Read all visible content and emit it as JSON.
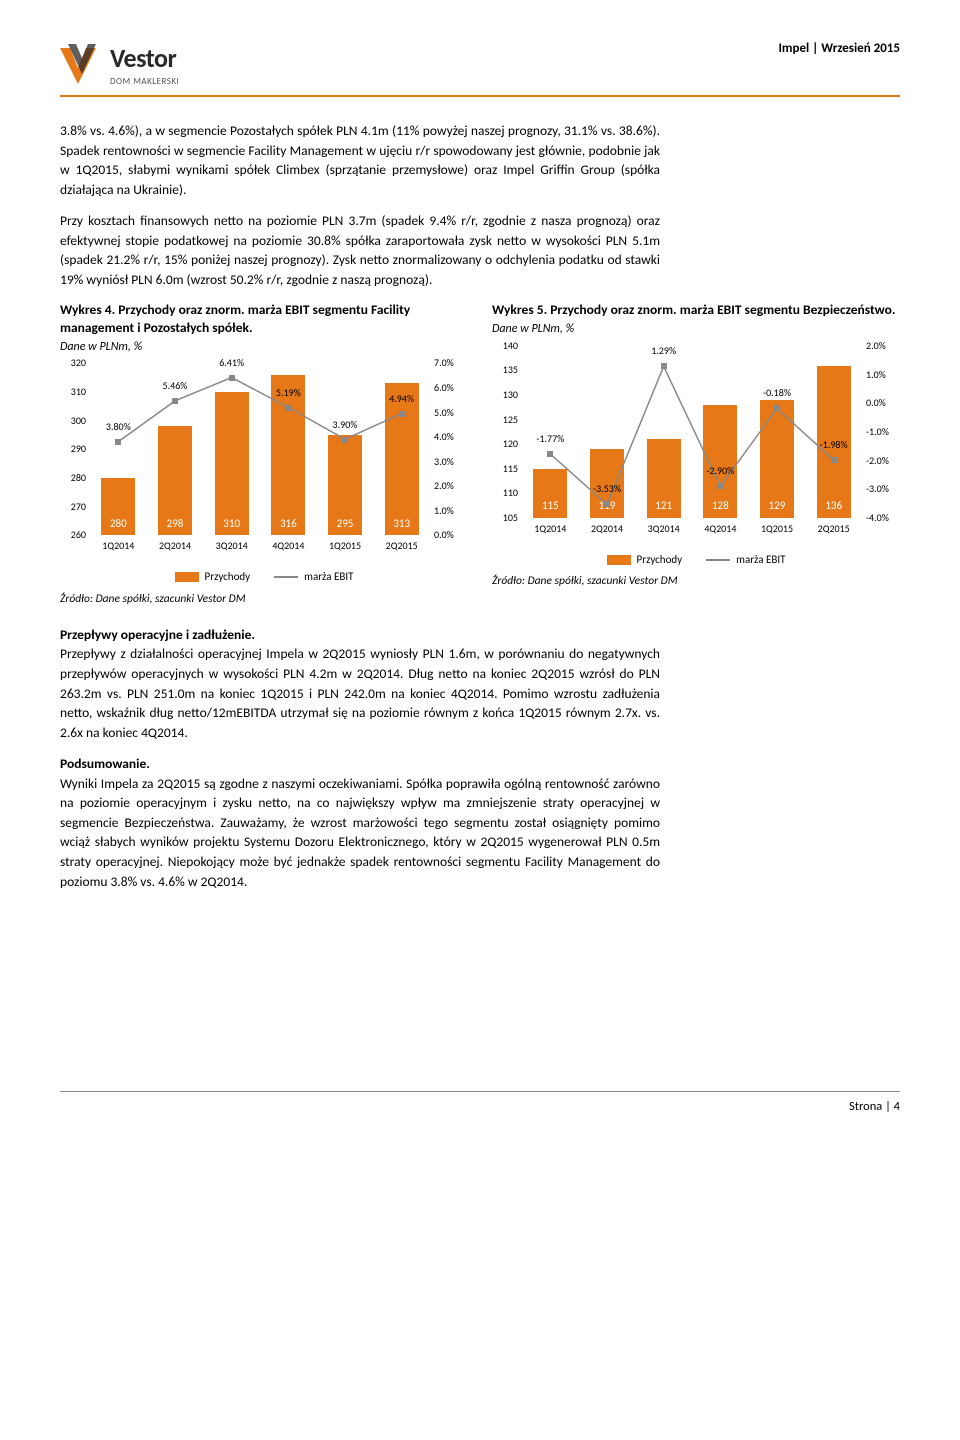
{
  "header": {
    "brand": "Vestor",
    "subbrand": "DOM MAKLERSKI",
    "right": "Impel | Wrzesień 2015",
    "logo_colors": {
      "orange": "#e67817",
      "dark": "#2a2a2a"
    }
  },
  "para1": "3.8% vs. 4.6%), a w segmencie Pozostałych spółek PLN 4.1m (11% powyżej naszej prognozy, 31.1% vs. 38.6%). Spadek rentowności w segmencie Facility Management w ujęciu r/r spowodowany jest głównie, podobnie jak w 1Q2015, słabymi wynikami spółek Climbex (sprzątanie przemysłowe) oraz Impel Griffin Group (spółka działająca na Ukrainie).",
  "para2": "Przy kosztach finansowych netto na poziomie PLN 3.7m (spadek 9.4% r/r, zgodnie z nasza prognozą) oraz efektywnej stopie podatkowej na poziomie 30.8% spółka zaraportowała zysk netto w wysokości PLN 5.1m (spadek 21.2% r/r, 15% poniżej naszej prognozy). Zysk netto znormalizowany o odchylenia podatku od stawki 19% wyniósł PLN 6.0m (wzrost 50.2% r/r, zgodnie z naszą prognozą).",
  "chart4": {
    "title": "Wykres 4. Przychody oraz znorm. marża EBIT segmentu Facility management i Pozostałych spółek.",
    "sub": "Dane w PLNm, %",
    "categories": [
      "1Q2014",
      "2Q2014",
      "3Q2014",
      "4Q2014",
      "1Q2015",
      "2Q2015"
    ],
    "bars": [
      280,
      298,
      310,
      316,
      295,
      313
    ],
    "line": [
      3.8,
      5.46,
      6.41,
      5.19,
      3.9,
      4.94
    ],
    "line_labels": [
      "3.80%",
      "5.46%",
      "6.41%",
      "5.19%",
      "3.90%",
      "4.94%"
    ],
    "y1_min": 260,
    "y1_max": 320,
    "y1_step": 10,
    "y2_min": 0.0,
    "y2_max": 7.0,
    "y2_step": 1.0,
    "bar_color": "#e67817",
    "line_color": "#888888",
    "bg": "#ffffff",
    "legend_bar": "Przychody",
    "legend_line": "marża EBIT",
    "source": "Źródło: Dane spółki, szacunki Vestor DM",
    "label_fontsize": 10
  },
  "chart5": {
    "title": "Wykres 5. Przychody oraz znorm. marża EBIT segmentu Bezpieczeństwo.",
    "sub": "Dane w PLNm, %",
    "categories": [
      "1Q2014",
      "2Q2014",
      "3Q2014",
      "4Q2014",
      "1Q2015",
      "2Q2015"
    ],
    "bars": [
      115,
      119,
      121,
      128,
      129,
      136
    ],
    "line": [
      -1.77,
      -3.53,
      1.29,
      -2.9,
      -0.18,
      -1.98
    ],
    "line_labels": [
      "-1.77%",
      "-3.53%",
      "1.29%",
      "-2.90%",
      "-0.18%",
      "-1.98%"
    ],
    "y1_min": 105,
    "y1_max": 140,
    "y1_step": 5,
    "y2_min": -4.0,
    "y2_max": 2.0,
    "y2_step": 1.0,
    "bar_color": "#e67817",
    "line_color": "#888888",
    "bg": "#ffffff",
    "legend_bar": "Przychody",
    "legend_line": "marża EBIT",
    "source": "Źródło: Dane spółki, szacunki Vestor DM",
    "label_fontsize": 10
  },
  "section3_title": "Przepływy operacyjne i zadłużenie.",
  "para3": "Przepływy z działalności operacyjnej Impela w 2Q2015 wyniosły PLN 1.6m, w porównaniu do negatywnych przepływów operacyjnych w wysokości PLN 4.2m w 2Q2014. Dług netto na koniec 2Q2015 wzrósł do PLN 263.2m vs. PLN 251.0m na koniec 1Q2015 i PLN 242.0m na koniec 4Q2014. Pomimo wzrostu zadłużenia netto, wskaźnik dług netto/12mEBITDA utrzymał się na poziomie równym z końca 1Q2015 równym 2.7x. vs. 2.6x na koniec 4Q2014.",
  "section4_title": "Podsumowanie.",
  "para4": "Wyniki Impela za 2Q2015 są zgodne z naszymi oczekiwaniami. Spółka poprawiła ogólną rentowność zarówno na poziomie operacyjnym i zysku netto, na co największy wpływ ma zmniejszenie straty operacyjnej w segmencie Bezpieczeństwa. Zauważamy, że wzrost marżowości tego segmentu został osiągnięty pomimo wciąż słabych wyników projektu Systemu Dozoru Elektronicznego, który w 2Q2015 wygenerował PLN 0.5m straty operacyjnej. Niepokojący może być jednakże spadek rentowności segmentu Facility Management do poziomu 3.8% vs. 4.6% w 2Q2014.",
  "footer": "Strona | 4"
}
